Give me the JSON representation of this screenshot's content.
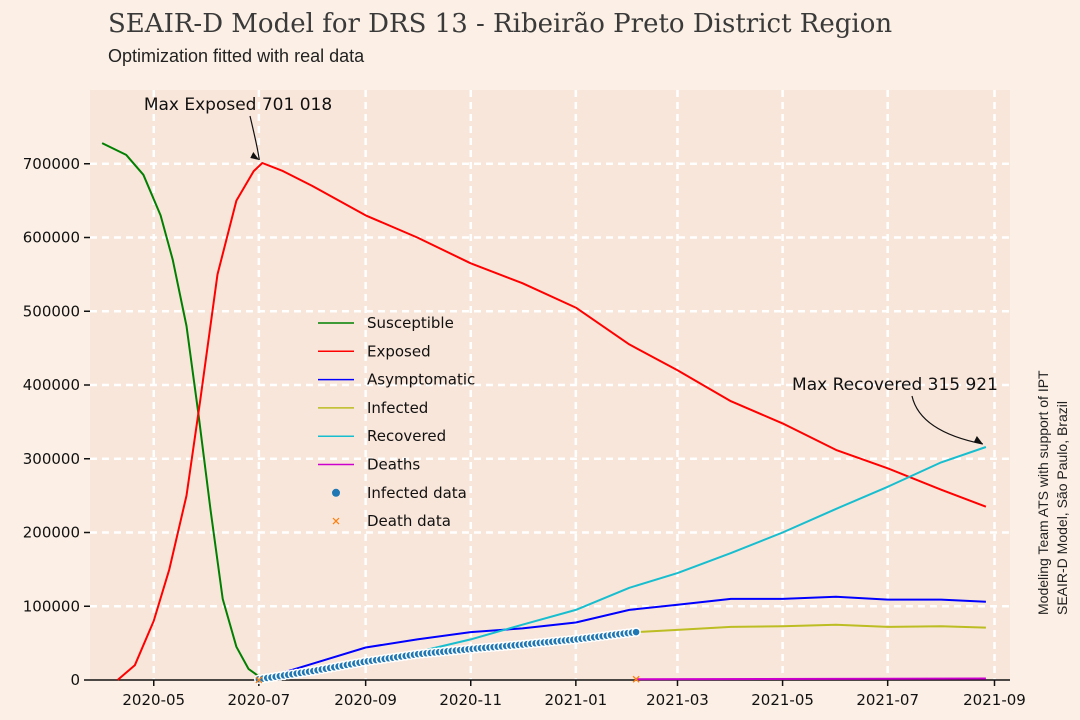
{
  "chart_data": {
    "type": "line",
    "title": "SEAIR-D Model for DRS 13 - Ribeirão Preto District Region",
    "subtitle": "Optimization fitted with real data",
    "side_note_line1": "Modeling Team ATS with support of IPT",
    "side_note_line2": "SEAIR-D Model, São Paulo, Brazil",
    "x_range": [
      "2020-03-25",
      "2021-09-10"
    ],
    "x_ticks": [
      "2020-05",
      "2020-07",
      "2020-09",
      "2020-11",
      "2021-01",
      "2021-03",
      "2021-05",
      "2021-07",
      "2021-09"
    ],
    "ylim": [
      0,
      800000
    ],
    "y_ticks": [
      0,
      100000,
      200000,
      300000,
      400000,
      500000,
      600000,
      700000
    ],
    "grid": true,
    "legend_position": "center-left",
    "series": [
      {
        "name": "Susceptible",
        "color": "#008000",
        "points": [
          [
            "2020-04-01",
            728000
          ],
          [
            "2020-04-15",
            712000
          ],
          [
            "2020-04-25",
            685000
          ],
          [
            "2020-05-05",
            630000
          ],
          [
            "2020-05-12",
            570000
          ],
          [
            "2020-05-20",
            480000
          ],
          [
            "2020-05-27",
            360000
          ],
          [
            "2020-06-03",
            230000
          ],
          [
            "2020-06-10",
            110000
          ],
          [
            "2020-06-18",
            45000
          ],
          [
            "2020-06-25",
            15000
          ],
          [
            "2020-07-01",
            5000
          ]
        ]
      },
      {
        "name": "Exposed",
        "color": "#ff0000",
        "points": [
          [
            "2020-04-10",
            0
          ],
          [
            "2020-04-20",
            20000
          ],
          [
            "2020-05-01",
            80000
          ],
          [
            "2020-05-10",
            150000
          ],
          [
            "2020-05-20",
            250000
          ],
          [
            "2020-05-28",
            380000
          ],
          [
            "2020-06-07",
            550000
          ],
          [
            "2020-06-18",
            650000
          ],
          [
            "2020-06-28",
            690000
          ],
          [
            "2020-07-03",
            701000
          ],
          [
            "2020-07-15",
            690000
          ],
          [
            "2020-08-01",
            670000
          ],
          [
            "2020-09-01",
            630000
          ],
          [
            "2020-10-01",
            600000
          ],
          [
            "2020-11-01",
            565000
          ],
          [
            "2020-12-01",
            538000
          ],
          [
            "2021-01-01",
            505000
          ],
          [
            "2021-02-01",
            455000
          ],
          [
            "2021-03-01",
            420000
          ],
          [
            "2021-04-01",
            378000
          ],
          [
            "2021-05-01",
            348000
          ],
          [
            "2021-06-01",
            312000
          ],
          [
            "2021-07-01",
            287000
          ],
          [
            "2021-08-01",
            258000
          ],
          [
            "2021-08-27",
            235000
          ]
        ]
      },
      {
        "name": "Asymptomatic",
        "color": "#0000ff",
        "points": [
          [
            "2020-07-01",
            0
          ],
          [
            "2020-08-01",
            22000
          ],
          [
            "2020-09-01",
            44000
          ],
          [
            "2020-10-01",
            55000
          ],
          [
            "2020-11-01",
            65000
          ],
          [
            "2020-12-01",
            70000
          ],
          [
            "2021-01-01",
            78000
          ],
          [
            "2021-02-01",
            95000
          ],
          [
            "2021-03-01",
            102000
          ],
          [
            "2021-04-01",
            110000
          ],
          [
            "2021-05-01",
            110000
          ],
          [
            "2021-06-01",
            113000
          ],
          [
            "2021-07-01",
            109000
          ],
          [
            "2021-08-01",
            109000
          ],
          [
            "2021-08-27",
            106000
          ]
        ]
      },
      {
        "name": "Infected",
        "color": "#bcbd22",
        "points": [
          [
            "2021-02-05",
            65000
          ],
          [
            "2021-03-01",
            68000
          ],
          [
            "2021-04-01",
            72000
          ],
          [
            "2021-05-01",
            73000
          ],
          [
            "2021-06-01",
            75000
          ],
          [
            "2021-07-01",
            72000
          ],
          [
            "2021-08-01",
            73000
          ],
          [
            "2021-08-27",
            71000
          ]
        ]
      },
      {
        "name": "Recovered",
        "color": "#17becf",
        "points": [
          [
            "2020-07-01",
            0
          ],
          [
            "2020-08-01",
            12000
          ],
          [
            "2020-09-01",
            25000
          ],
          [
            "2020-10-01",
            38000
          ],
          [
            "2020-11-01",
            55000
          ],
          [
            "2020-12-01",
            75000
          ],
          [
            "2021-01-01",
            95000
          ],
          [
            "2021-02-01",
            125000
          ],
          [
            "2021-03-01",
            145000
          ],
          [
            "2021-04-01",
            172000
          ],
          [
            "2021-05-01",
            200000
          ],
          [
            "2021-06-01",
            232000
          ],
          [
            "2021-07-01",
            262000
          ],
          [
            "2021-08-01",
            295000
          ],
          [
            "2021-08-27",
            315921
          ]
        ]
      },
      {
        "name": "Deaths",
        "color": "#cc00cc",
        "points": [
          [
            "2021-02-05",
            1000
          ],
          [
            "2021-08-27",
            2000
          ]
        ]
      },
      {
        "name": "Infected data",
        "color": "#1f77b4",
        "marker": "dot",
        "points": [
          [
            "2020-07-01",
            1000
          ],
          [
            "2020-08-01",
            12000
          ],
          [
            "2020-09-01",
            25000
          ],
          [
            "2020-10-01",
            35000
          ],
          [
            "2020-11-01",
            42000
          ],
          [
            "2020-12-01",
            48000
          ],
          [
            "2021-01-01",
            55000
          ],
          [
            "2021-02-05",
            65000
          ]
        ]
      },
      {
        "name": "Death data",
        "color": "#ff7f0e",
        "marker": "x",
        "points": [
          [
            "2020-07-01",
            100
          ],
          [
            "2021-02-05",
            1000
          ]
        ]
      }
    ],
    "annotations": [
      {
        "label": "Max Exposed 701 018",
        "x": "2020-07-03",
        "y": 701018
      },
      {
        "label": "Max Recovered 315 921",
        "x": "2021-08-27",
        "y": 315921
      }
    ]
  }
}
